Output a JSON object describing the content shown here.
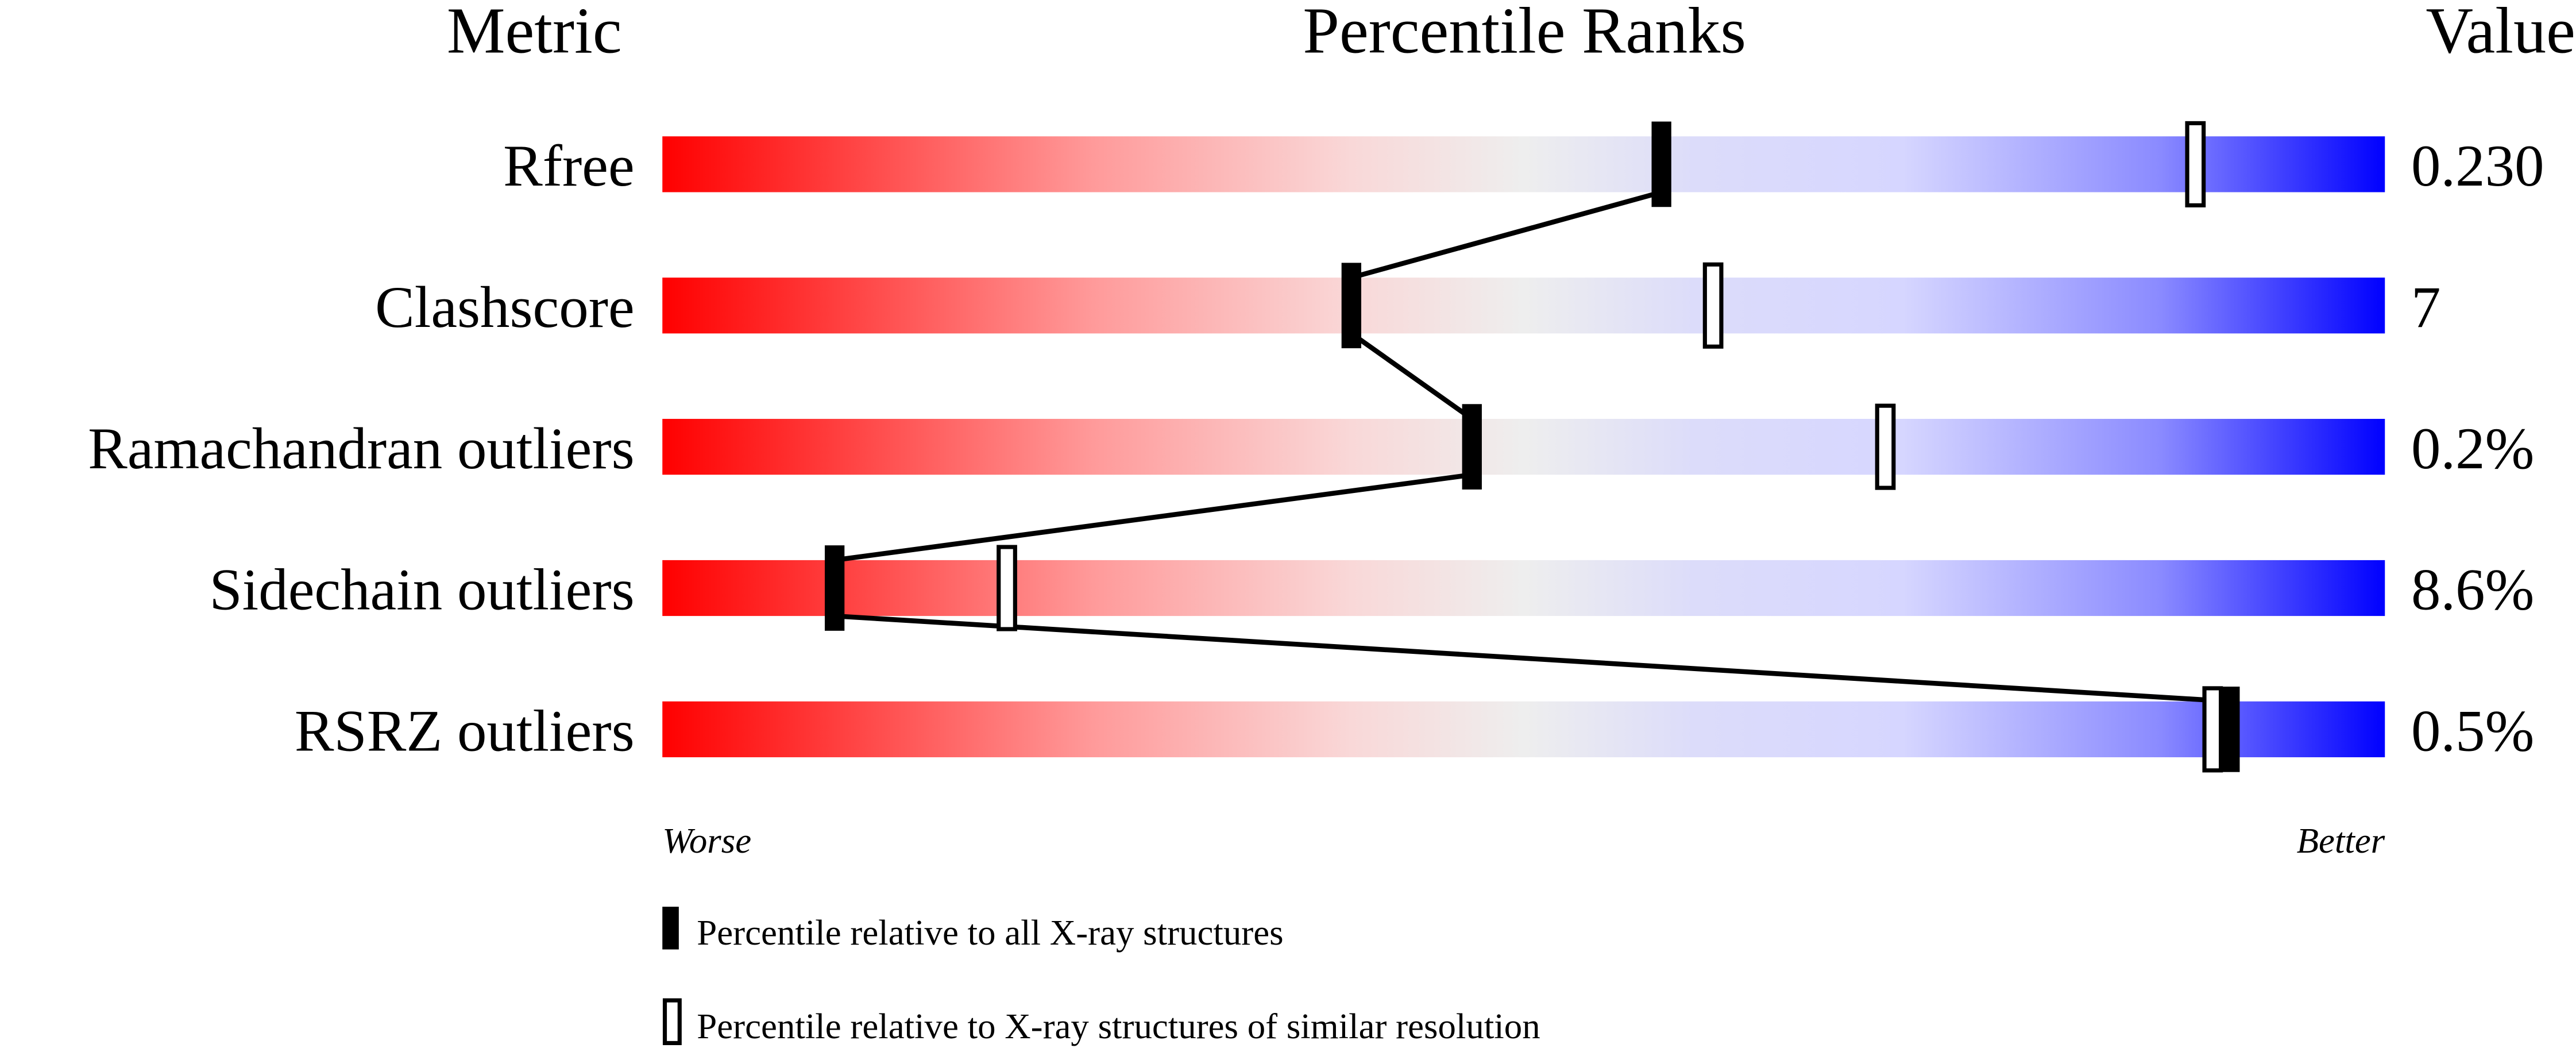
{
  "chart_data": {
    "type": "percentile-slider",
    "headers": {
      "metric": "Metric",
      "ranks": "Percentile Ranks",
      "value": "Value"
    },
    "xlim": [
      0,
      100
    ],
    "metrics": [
      {
        "name": "Rfree",
        "value": "0.230",
        "percentile_all": 58,
        "percentile_similar": 89
      },
      {
        "name": "Clashscore",
        "value": "7",
        "percentile_all": 40,
        "percentile_similar": 61
      },
      {
        "name": "Ramachandran outliers",
        "value": "0.2%",
        "percentile_all": 47,
        "percentile_similar": 71
      },
      {
        "name": "Sidechain outliers",
        "value": "8.6%",
        "percentile_all": 10,
        "percentile_similar": 20
      },
      {
        "name": "RSRZ outliers",
        "value": "0.5%",
        "percentile_all": 91,
        "percentile_similar": 90
      }
    ],
    "axis_labels": {
      "left": "Worse",
      "right": "Better"
    },
    "legend": {
      "all": "Percentile relative to all X-ray structures",
      "similar": "Percentile relative to X-ray structures of similar resolution"
    },
    "colors": {
      "worse": "#ff0000",
      "middle": "#eeeeee",
      "light_blue": "#d8d8ff",
      "better": "#0000ff"
    }
  }
}
